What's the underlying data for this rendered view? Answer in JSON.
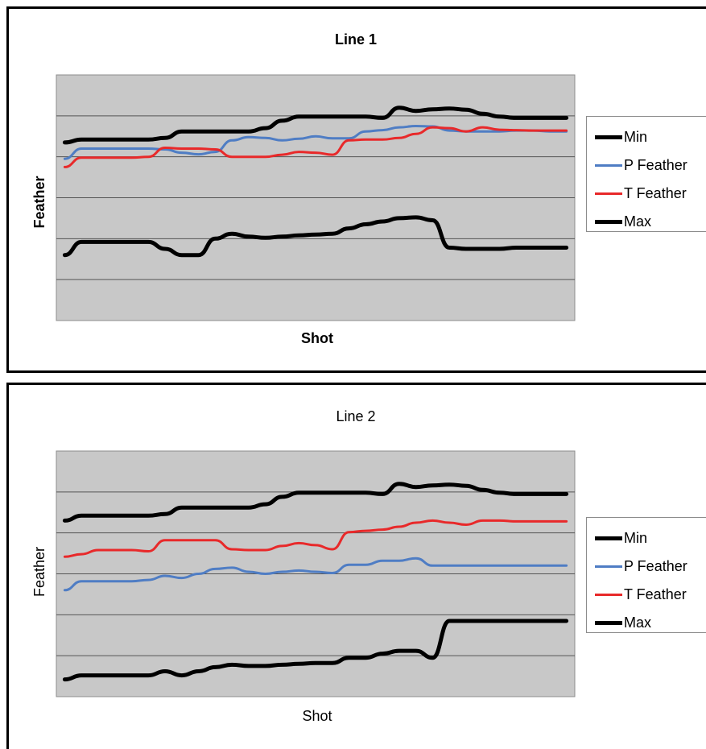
{
  "chart_data": [
    {
      "type": "line",
      "title": "Line 1",
      "xlabel": "Shot",
      "ylabel": "Feather",
      "bold": true,
      "ylim": [
        0,
        6
      ],
      "xlim": [
        0,
        31
      ],
      "grid": true,
      "legend_position": "right",
      "series": [
        {
          "name": "Min",
          "color": "#000000",
          "values": [
            4.35,
            4.42,
            4.42,
            4.42,
            4.42,
            4.42,
            4.46,
            4.62,
            4.62,
            4.62,
            4.62,
            4.62,
            4.7,
            4.88,
            4.98,
            4.98,
            4.98,
            4.98,
            4.98,
            4.95,
            5.2,
            5.12,
            5.16,
            5.18,
            5.15,
            5.05,
            4.98,
            4.95,
            4.95,
            4.95,
            4.95
          ]
        },
        {
          "name": "P Feather",
          "color": "#4f7dc4",
          "values": [
            3.95,
            4.2,
            4.2,
            4.2,
            4.2,
            4.2,
            4.18,
            4.1,
            4.06,
            4.12,
            4.4,
            4.48,
            4.46,
            4.4,
            4.44,
            4.5,
            4.45,
            4.45,
            4.62,
            4.65,
            4.72,
            4.75,
            4.74,
            4.64,
            4.62,
            4.62,
            4.62,
            4.64,
            4.64,
            4.62,
            4.62
          ]
        },
        {
          "name": "T Feather",
          "color": "#e8292a",
          "values": [
            3.75,
            3.98,
            3.98,
            3.98,
            3.98,
            4.0,
            4.22,
            4.2,
            4.2,
            4.18,
            4.0,
            4.0,
            4.0,
            4.05,
            4.12,
            4.1,
            4.05,
            4.4,
            4.42,
            4.42,
            4.46,
            4.56,
            4.72,
            4.7,
            4.62,
            4.72,
            4.66,
            4.65,
            4.64,
            4.64,
            4.64
          ]
        },
        {
          "name": "Max",
          "color": "#000000",
          "values": [
            1.6,
            1.92,
            1.92,
            1.92,
            1.92,
            1.92,
            1.75,
            1.6,
            1.6,
            2.0,
            2.12,
            2.05,
            2.02,
            2.05,
            2.08,
            2.1,
            2.12,
            2.25,
            2.35,
            2.42,
            2.5,
            2.52,
            2.45,
            1.78,
            1.75,
            1.75,
            1.75,
            1.78,
            1.78,
            1.78,
            1.78
          ]
        }
      ]
    },
    {
      "type": "line",
      "title": "Line 2",
      "xlabel": "Shot",
      "ylabel": "Feather",
      "bold": false,
      "ylim": [
        0,
        6
      ],
      "xlim": [
        0,
        31
      ],
      "grid": true,
      "legend_position": "right",
      "series": [
        {
          "name": "Min",
          "color": "#000000",
          "values": [
            4.3,
            4.42,
            4.42,
            4.42,
            4.42,
            4.42,
            4.46,
            4.62,
            4.62,
            4.62,
            4.62,
            4.62,
            4.7,
            4.88,
            4.98,
            4.98,
            4.98,
            4.98,
            4.98,
            4.95,
            5.2,
            5.12,
            5.16,
            5.18,
            5.15,
            5.05,
            4.98,
            4.95,
            4.95,
            4.95,
            4.95
          ]
        },
        {
          "name": "P Feather",
          "color": "#4f7dc4",
          "values": [
            2.6,
            2.82,
            2.82,
            2.82,
            2.82,
            2.85,
            2.95,
            2.9,
            3.0,
            3.12,
            3.15,
            3.05,
            3.0,
            3.05,
            3.08,
            3.05,
            3.02,
            3.22,
            3.22,
            3.32,
            3.32,
            3.38,
            3.2,
            3.2,
            3.2,
            3.2,
            3.2,
            3.2,
            3.2,
            3.2,
            3.2
          ]
        },
        {
          "name": "T Feather",
          "color": "#e8292a",
          "values": [
            3.42,
            3.48,
            3.58,
            3.58,
            3.58,
            3.55,
            3.82,
            3.82,
            3.82,
            3.82,
            3.6,
            3.58,
            3.58,
            3.68,
            3.75,
            3.7,
            3.6,
            4.02,
            4.05,
            4.08,
            4.15,
            4.25,
            4.3,
            4.25,
            4.2,
            4.3,
            4.3,
            4.28,
            4.28,
            4.28,
            4.28
          ]
        },
        {
          "name": "Max",
          "color": "#000000",
          "values": [
            0.42,
            0.52,
            0.52,
            0.52,
            0.52,
            0.52,
            0.62,
            0.52,
            0.62,
            0.72,
            0.78,
            0.75,
            0.75,
            0.78,
            0.8,
            0.82,
            0.82,
            0.95,
            0.95,
            1.05,
            1.12,
            1.12,
            0.95,
            1.85,
            1.85,
            1.85,
            1.85,
            1.85,
            1.85,
            1.85,
            1.85
          ]
        }
      ]
    }
  ]
}
